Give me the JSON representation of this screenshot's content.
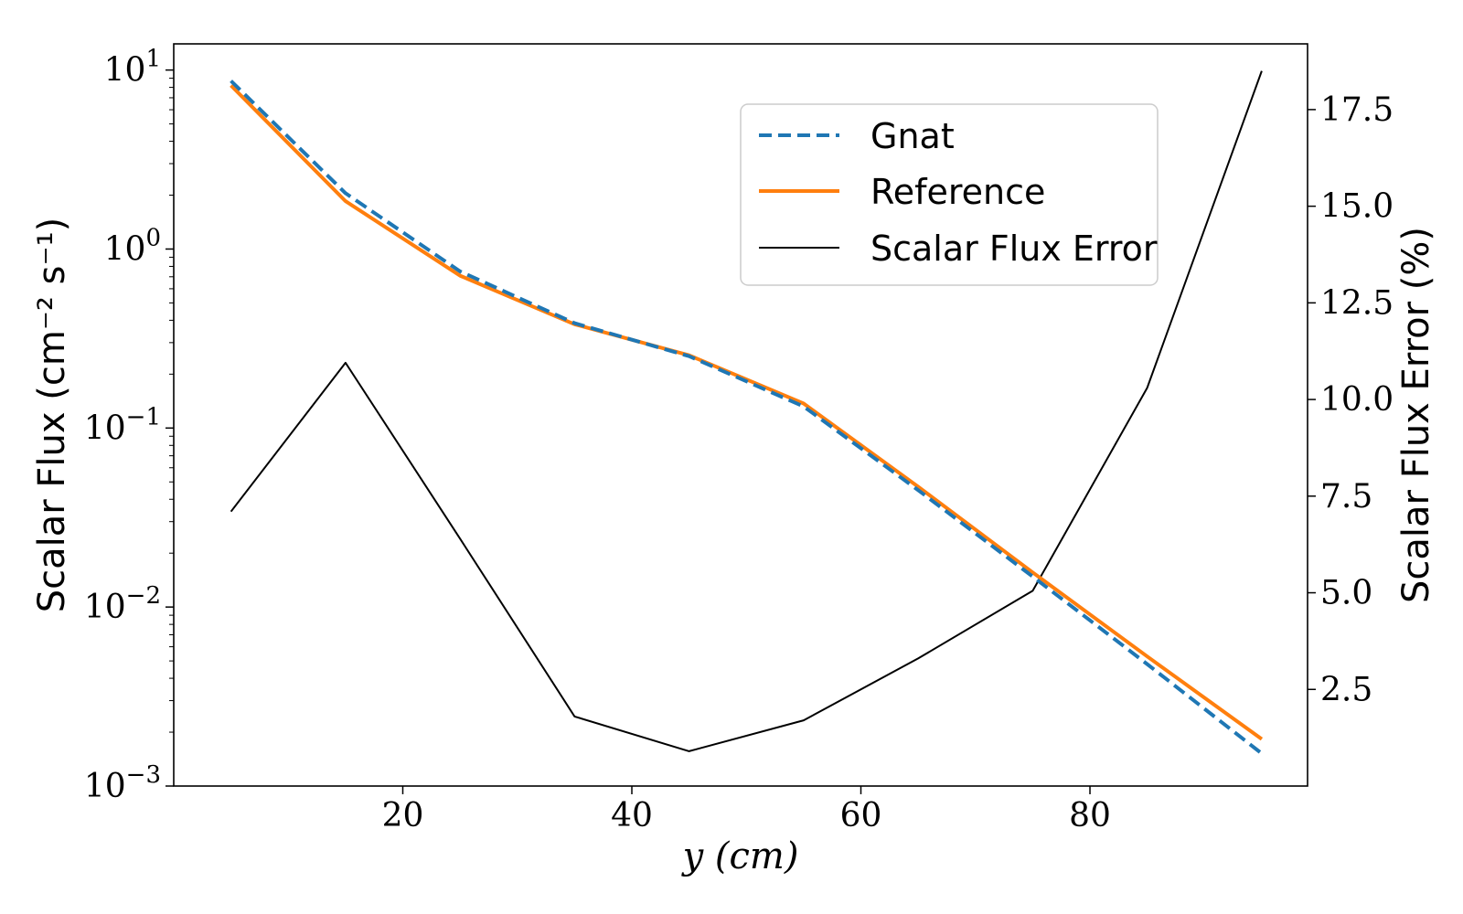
{
  "chart_data": {
    "type": "line",
    "x": [
      5,
      15,
      25,
      35,
      45,
      55,
      65,
      75,
      85,
      95
    ],
    "xlabel": "y (cm)",
    "xlim": [
      0,
      99
    ],
    "xticks": [
      20,
      40,
      60,
      80
    ],
    "ylabel": "Scalar Flux (cm⁻² s⁻¹)",
    "yscale": "log",
    "ylim": [
      0.001,
      14
    ],
    "yticks": [
      {
        "base": "10",
        "exp": "1",
        "value": 10
      },
      {
        "base": "10",
        "exp": "0",
        "value": 1
      },
      {
        "base": "10",
        "exp": "−1",
        "value": 0.1
      },
      {
        "base": "10",
        "exp": "−2",
        "value": 0.01
      },
      {
        "base": "10",
        "exp": "−3",
        "value": 0.001
      }
    ],
    "y2label": "Scalar Flux Error (%)",
    "y2lim": [
      0,
      19.2
    ],
    "y2ticks": [
      "2.5",
      "5.0",
      "7.5",
      "10.0",
      "12.5",
      "15.0",
      "17.5"
    ],
    "series": [
      {
        "name": "Gnat",
        "axis": "left",
        "style": "dashed",
        "color": "#1f77b4",
        "values": [
          8.7,
          2.05,
          0.75,
          0.385,
          0.252,
          0.132,
          0.045,
          0.0148,
          0.0048,
          0.00152
        ]
      },
      {
        "name": "Reference",
        "axis": "left",
        "style": "solid",
        "color": "#ff7f0e",
        "values": [
          8.2,
          1.85,
          0.71,
          0.38,
          0.255,
          0.137,
          0.047,
          0.0156,
          0.0053,
          0.00183
        ]
      },
      {
        "name": "Scalar Flux Error",
        "axis": "right",
        "style": "solid",
        "color": "#000000",
        "values": [
          7.1,
          10.95,
          6.4,
          1.8,
          0.9,
          1.7,
          3.3,
          5.05,
          10.3,
          18.5
        ]
      }
    ],
    "legend": {
      "position": "upper-right",
      "entries": [
        "Gnat",
        "Reference",
        "Scalar Flux Error"
      ]
    }
  }
}
